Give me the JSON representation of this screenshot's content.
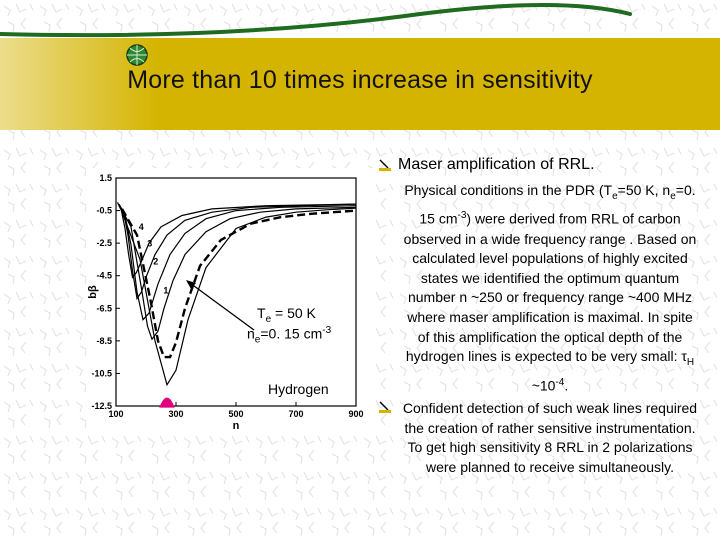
{
  "slide": {
    "title": "More than 10 times increase in sensitivity",
    "accent_color": "#d4b400",
    "bullets": [
      {
        "icon": "bullet-pen-icon",
        "text": "Maser amplification of RRL."
      },
      {
        "icon": "bullet-pen-icon"
      }
    ],
    "paragraph1": {
      "p1": "Physical conditions in the PDR (T",
      "p1_sub": "e",
      "p2": "=50 K, n",
      "p2_sub": "e",
      "p3": "=0. 15 cm",
      "p3_sup": "-3",
      "p4": ") were derived from RRL of carbon observed in a wide frequency range . Based on calculated level populations of highly excited states we identified the optimum quantum number n ~250 or frequency range ~400 MHz where maser amplification is maximal. In spite of this amplification the optical depth of the hydrogen lines is expected to be very small: τ",
      "p4_sub": "H",
      "p5": " ~10",
      "p5_sup": "-4",
      "p6": "."
    },
    "paragraph2": "Confident detection of such weak lines required the creation of rather sensitive instrumentation. To get high sensitivity 8 RRL in 2 polarizations were planned to receive simultaneously."
  },
  "annotations": {
    "te_prefix": "T",
    "te_sub": "e",
    "te_suffix": " = 50 K",
    "ne_prefix": "n",
    "ne_sub": "e",
    "ne_suffix": "=0. 15 cm",
    "ne_sup": "-3",
    "hydrogen": "Hydrogen"
  },
  "chart_data": {
    "type": "line",
    "xlabel": "n",
    "ylabel": "bβ",
    "xlim": [
      100,
      900
    ],
    "ylim": [
      -12.5,
      1.5
    ],
    "x_ticks": [
      "100",
      "300",
      "500",
      "700",
      "900"
    ],
    "y_ticks": [
      "1.5",
      "-0.5",
      "-2.5",
      "-4.5",
      "-6.5",
      "-8.5",
      "-10.5",
      "-12.5"
    ],
    "curve_labels": [
      "1",
      "2",
      "3",
      "4"
    ],
    "marker": {
      "n": 270,
      "value": -12.2,
      "color": "#e0007f"
    },
    "series": [
      {
        "style": "solid",
        "x": [
          120,
          180,
          230,
          270,
          300,
          340,
          400,
          500,
          600,
          700,
          800,
          900
        ],
        "y": [
          -0.6,
          -3.5,
          -8.5,
          -11.2,
          -10.3,
          -7.2,
          -4.0,
          -1.6,
          -0.9,
          -0.6,
          -0.45,
          -0.35
        ]
      },
      {
        "style": "dashed",
        "x": [
          120,
          170,
          215,
          240,
          260,
          280,
          300,
          330,
          380,
          450,
          550,
          650,
          750,
          900
        ],
        "y": [
          -0.4,
          -2.0,
          -6.0,
          -8.5,
          -9.5,
          -9.5,
          -8.6,
          -6.5,
          -3.9,
          -2.3,
          -1.3,
          -0.9,
          -0.7,
          -0.5
        ]
      },
      {
        "style": "solid",
        "x": [
          115,
          150,
          185,
          205,
          220,
          240,
          260,
          290,
          330,
          400,
          480,
          580,
          700,
          900
        ],
        "y": [
          -0.3,
          -1.5,
          -5.3,
          -7.6,
          -8.4,
          -7.9,
          -6.5,
          -4.8,
          -3.2,
          -1.8,
          -1.0,
          -0.6,
          -0.4,
          -0.3
        ]
      },
      {
        "style": "solid",
        "x": [
          110,
          130,
          150,
          170,
          190,
          210,
          240,
          280,
          330,
          400,
          500,
          650,
          900
        ],
        "y": [
          -0.2,
          -0.8,
          -2.6,
          -5.5,
          -7.2,
          -6.8,
          -5.0,
          -3.2,
          -1.9,
          -1.0,
          -0.5,
          -0.3,
          -0.2
        ]
      },
      {
        "style": "solid",
        "x": [
          110,
          125,
          140,
          155,
          170,
          185,
          200,
          230,
          270,
          330,
          420,
          550,
          900
        ],
        "y": [
          -0.1,
          -0.6,
          -2.0,
          -4.2,
          -5.9,
          -5.5,
          -4.6,
          -3.2,
          -2.0,
          -1.1,
          -0.6,
          -0.3,
          -0.1
        ]
      },
      {
        "style": "solid",
        "x": [
          105,
          118,
          130,
          142,
          155,
          168,
          185,
          210,
          250,
          320,
          420,
          600,
          900
        ],
        "y": [
          0.0,
          -0.5,
          -1.6,
          -3.2,
          -4.6,
          -4.3,
          -3.6,
          -2.5,
          -1.5,
          -0.8,
          -0.4,
          -0.2,
          -0.1
        ]
      }
    ]
  }
}
